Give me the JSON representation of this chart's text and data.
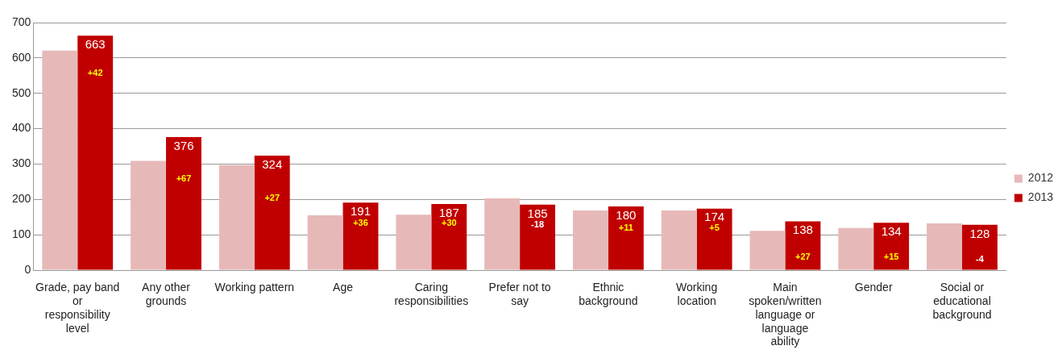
{
  "chart_data": {
    "type": "bar",
    "categories": [
      "Grade, pay band or responsibility level",
      "Any other grounds",
      "Working pattern",
      "Age",
      "Caring responsibilities",
      "Prefer not to say",
      "Ethnic background",
      "Working location",
      "Main spoken/written language or language ability",
      "Gender",
      "Social or educational background"
    ],
    "series": [
      {
        "name": "2012",
        "color": "#e6b9b8",
        "values": [
          621,
          309,
          297,
          155,
          157,
          203,
          169,
          169,
          111,
          119,
          132
        ]
      },
      {
        "name": "2013",
        "color": "#c00000",
        "values": [
          663,
          376,
          324,
          191,
          187,
          185,
          180,
          174,
          138,
          134,
          128
        ],
        "value_labels": [
          "663",
          "376",
          "324",
          "191",
          "187",
          "185",
          "180",
          "174",
          "138",
          "134",
          "128"
        ]
      }
    ],
    "ylim": [
      0,
      700
    ],
    "yticks": [
      0,
      100,
      200,
      300,
      400,
      500,
      600,
      700
    ],
    "grid": "y",
    "legend": "right",
    "annotations": [
      {
        "text": "+42",
        "x": "Grade, pay band or responsibility level",
        "y": 556
      },
      {
        "text": "+67",
        "x": "Any other grounds",
        "y": 257
      },
      {
        "text": "+27",
        "x": "Working pattern",
        "y": 204
      },
      {
        "text": "+36",
        "x": "Age",
        "y": 132
      },
      {
        "text": "+30",
        "x": "Caring responsibilities",
        "y": 132
      },
      {
        "text": "-18",
        "x": "Prefer not to say",
        "y": 127
      },
      {
        "text": "+11",
        "x": "Ethnic background",
        "y": 119
      },
      {
        "text": "+5",
        "x": "Working location",
        "y": 119
      },
      {
        "text": "+27",
        "x": "Main spoken/written language or language ability",
        "y": 36
      },
      {
        "text": "+15",
        "x": "Gender",
        "y": 36
      },
      {
        "text": "-4",
        "x": "Social or educational background",
        "y": 30
      }
    ]
  }
}
